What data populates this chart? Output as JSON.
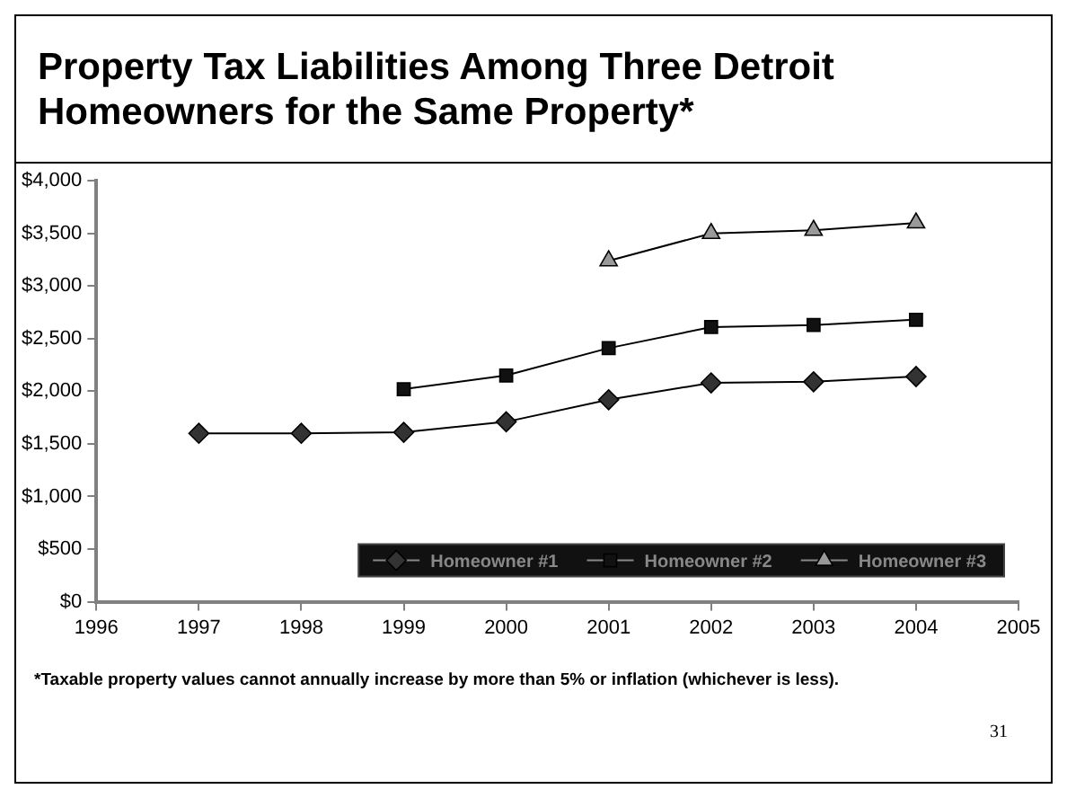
{
  "chart_data": {
    "type": "line",
    "title": "Property Tax Liabilities Among Three Detroit Homeowners for the Same Property*",
    "x": [
      1997,
      1998,
      1999,
      2000,
      2001,
      2002,
      2003,
      2004
    ],
    "series": [
      {
        "name": "Homeowner #1",
        "color": "#333333",
        "marker": "diamond",
        "values": [
          1600,
          1600,
          1610,
          1710,
          1920,
          2080,
          2090,
          2140
        ]
      },
      {
        "name": "Homeowner #2",
        "color": "#111111",
        "marker": "square",
        "values": [
          null,
          null,
          2020,
          2150,
          2410,
          2610,
          2630,
          2680
        ]
      },
      {
        "name": "Homeowner #3",
        "color": "#999999",
        "marker": "triangle",
        "values": [
          null,
          null,
          null,
          null,
          3240,
          3500,
          3530,
          3600
        ]
      }
    ],
    "xlim": [
      1996,
      2005
    ],
    "xticks": [
      1996,
      1997,
      1998,
      1999,
      2000,
      2001,
      2002,
      2003,
      2004,
      2005
    ],
    "ylim": [
      0,
      4000
    ],
    "yticks": [
      {
        "value": 0,
        "label": "$0"
      },
      {
        "value": 500,
        "label": "$500"
      },
      {
        "value": 1000,
        "label": "$1,000"
      },
      {
        "value": 1500,
        "label": "$1,500"
      },
      {
        "value": 2000,
        "label": "$2,000"
      },
      {
        "value": 2500,
        "label": "$2,500"
      },
      {
        "value": 3000,
        "label": "$3,000"
      },
      {
        "value": 3500,
        "label": "$3,500"
      },
      {
        "value": 4000,
        "label": "$4,000"
      }
    ],
    "grid": false,
    "legend": "bottom right",
    "annotations": [
      "*Taxable property values cannot annually increase by more than 5% or inflation (whichever is less).",
      "31"
    ]
  }
}
